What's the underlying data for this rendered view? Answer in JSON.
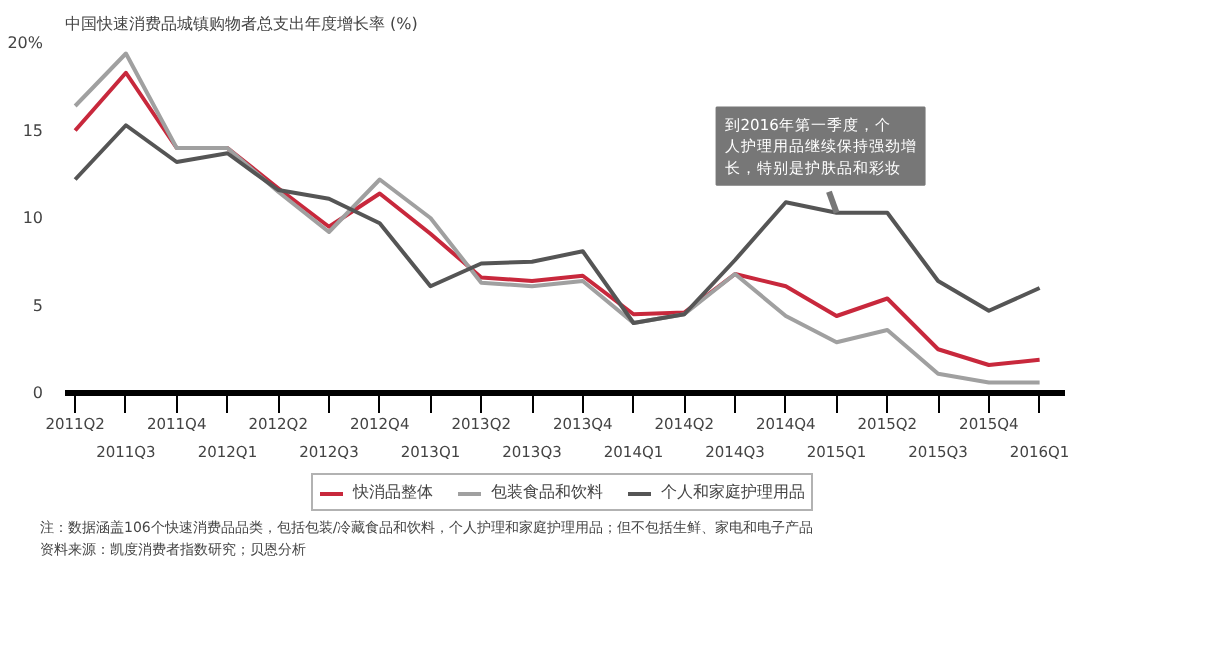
{
  "chart_data": {
    "type": "line",
    "title": "中国快速消费品城镇购物者总支出年度增长率 (%)",
    "categories": [
      "2011Q2",
      "2011Q3",
      "2011Q4",
      "2012Q1",
      "2012Q2",
      "2012Q3",
      "2012Q4",
      "2013Q1",
      "2013Q2",
      "2013Q3",
      "2013Q4",
      "2014Q1",
      "2014Q2",
      "2014Q3",
      "2014Q4",
      "2015Q1",
      "2015Q2",
      "2015Q3",
      "2015Q4",
      "2016Q1"
    ],
    "series": [
      {
        "name": "快消品整体",
        "color": "#c8283c",
        "values": [
          15,
          18.3,
          14,
          14,
          11.7,
          9.5,
          11.4,
          9.1,
          6.6,
          6.4,
          6.7,
          4.5,
          4.6,
          6.8,
          6.1,
          4.4,
          5.4,
          2.5,
          1.6,
          1.9
        ]
      },
      {
        "name": "包装食品和饮料",
        "color": "#a0a0a0",
        "values": [
          16.4,
          19.4,
          14,
          14,
          11.5,
          9.2,
          12.2,
          10,
          6.3,
          6.1,
          6.4,
          4.0,
          4.5,
          6.8,
          4.4,
          2.9,
          3.6,
          1.1,
          0.6,
          0.6
        ]
      },
      {
        "name": "个人和家庭护理用品",
        "color": "#555555",
        "values": [
          12.2,
          15.3,
          13.2,
          13.7,
          11.6,
          11.1,
          9.7,
          6.1,
          7.4,
          7.5,
          8.1,
          4.0,
          4.5,
          7.6,
          10.9,
          10.3,
          10.3,
          6.4,
          4.7,
          6.0
        ]
      }
    ],
    "ylim": [
      0,
      20
    ],
    "yticks": [
      0,
      5,
      10,
      15,
      {
        "value": 20,
        "label": "20%"
      }
    ],
    "grid": false,
    "legend": "bottom",
    "line_style": "solid",
    "annotations": [
      {
        "text": "到2016年第一季度，个人护理用品继续保持强劲增长，特别是护肤品和彩妆",
        "x": "2015Q1",
        "y": 10.3
      },
      "注：数据涵盖106个快速消费品品类，包括包装/冷藏食品和饮料，个人护理和家庭护理用品；但不包括生鲜、家电和电子产品",
      "资料来源：凯度消费者指数研究；贝恩分析"
    ]
  }
}
